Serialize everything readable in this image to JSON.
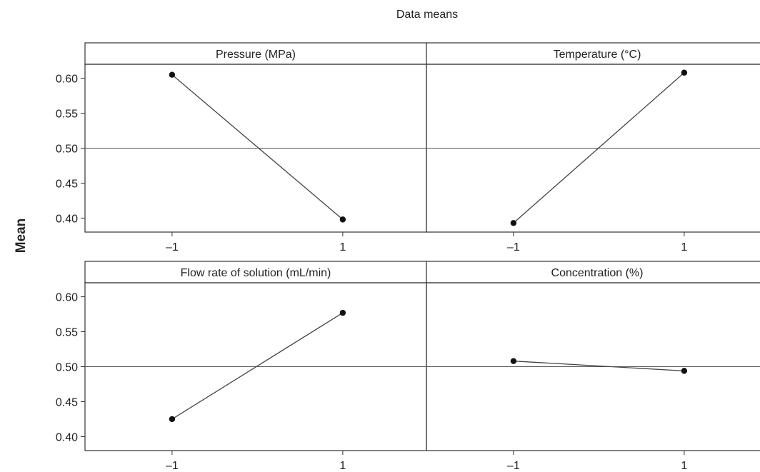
{
  "chart_data": {
    "type": "line",
    "title": "Data means",
    "ylabel": "Mean",
    "ylim": [
      0.38,
      0.62
    ],
    "yticks": [
      "0.40",
      "0.45",
      "0.50",
      "0.55",
      "0.60"
    ],
    "reference_line": 0.5,
    "xticks": [
      "–1",
      "1"
    ],
    "panels": [
      {
        "title": "Pressure (MPa)",
        "x": [
          -1,
          1
        ],
        "values": [
          0.605,
          0.398
        ]
      },
      {
        "title": "Temperature (°C)",
        "x": [
          -1,
          1
        ],
        "values": [
          0.393,
          0.608
        ]
      },
      {
        "title": "Flow rate of solution (mL/min)",
        "x": [
          -1,
          1
        ],
        "values": [
          0.425,
          0.577
        ]
      },
      {
        "title": "Concentration (%)",
        "x": [
          -1,
          1
        ],
        "values": [
          0.508,
          0.494
        ]
      }
    ],
    "grid": false,
    "legend": "none"
  }
}
